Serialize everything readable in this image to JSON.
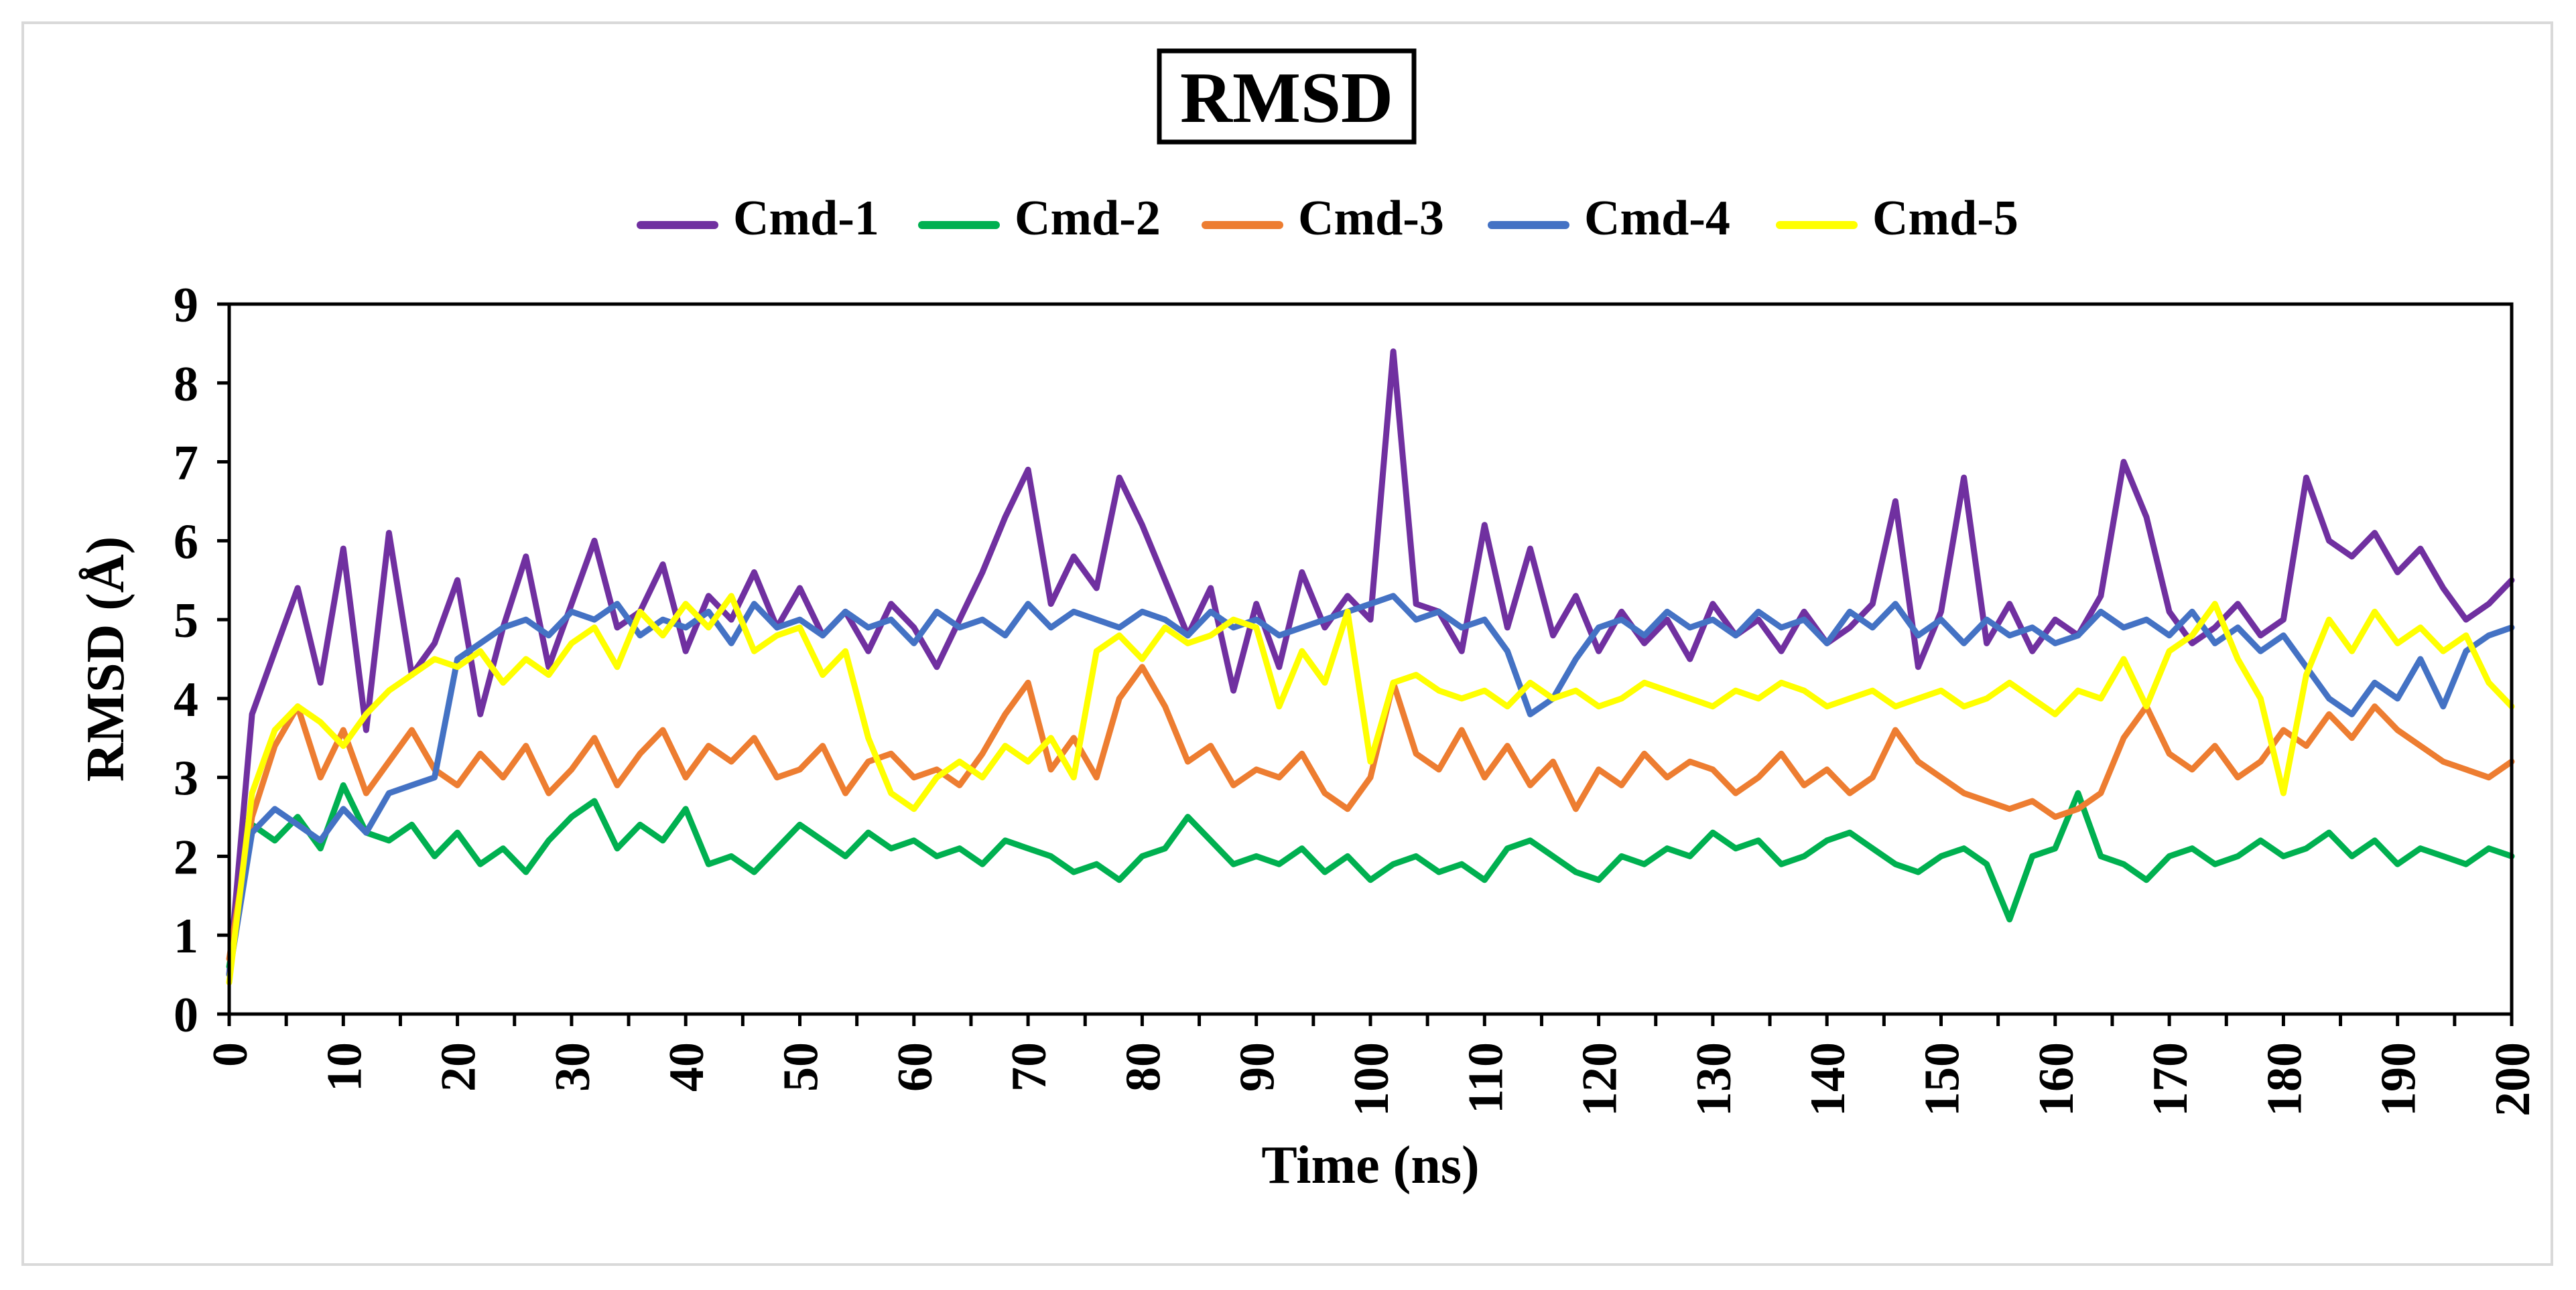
{
  "chart_data": {
    "type": "line",
    "title": "RMSD",
    "xlabel": "Time (ns)",
    "ylabel": "RMSD (Å)",
    "xlim": [
      0,
      200
    ],
    "ylim": [
      0,
      9
    ],
    "grid": false,
    "legend_position": "top-center",
    "x_ticks": [
      0,
      10,
      20,
      30,
      40,
      50,
      60,
      70,
      80,
      90,
      100,
      110,
      120,
      130,
      140,
      150,
      160,
      170,
      180,
      190,
      200
    ],
    "y_ticks": [
      0,
      1,
      2,
      3,
      4,
      5,
      6,
      7,
      8,
      9
    ],
    "x": [
      0,
      2,
      4,
      6,
      8,
      10,
      12,
      14,
      16,
      18,
      20,
      22,
      24,
      26,
      28,
      30,
      32,
      34,
      36,
      38,
      40,
      42,
      44,
      46,
      48,
      50,
      52,
      54,
      56,
      58,
      60,
      62,
      64,
      66,
      68,
      70,
      72,
      74,
      76,
      78,
      80,
      82,
      84,
      86,
      88,
      90,
      92,
      94,
      96,
      98,
      100,
      102,
      104,
      106,
      108,
      110,
      112,
      114,
      116,
      118,
      120,
      122,
      124,
      126,
      128,
      130,
      132,
      134,
      136,
      138,
      140,
      142,
      144,
      146,
      148,
      150,
      152,
      154,
      156,
      158,
      160,
      162,
      164,
      166,
      168,
      170,
      172,
      174,
      176,
      178,
      180,
      182,
      184,
      186,
      188,
      190,
      192,
      194,
      196,
      198,
      200
    ],
    "series": [
      {
        "name": "Cmd-1",
        "color": "#7030a0",
        "values": [
          0.5,
          3.8,
          4.6,
          5.4,
          4.2,
          5.9,
          3.6,
          6.1,
          4.3,
          4.7,
          5.5,
          3.8,
          4.9,
          5.8,
          4.4,
          5.2,
          6.0,
          4.9,
          5.1,
          5.7,
          4.6,
          5.3,
          5.0,
          5.6,
          4.9,
          5.4,
          4.8,
          5.1,
          4.6,
          5.2,
          4.9,
          4.4,
          5.0,
          5.6,
          6.3,
          6.9,
          5.2,
          5.8,
          5.4,
          6.8,
          6.2,
          5.5,
          4.8,
          5.4,
          4.1,
          5.2,
          4.4,
          5.6,
          4.9,
          5.3,
          5.0,
          8.4,
          5.2,
          5.1,
          4.6,
          6.2,
          4.9,
          5.9,
          4.8,
          5.3,
          4.6,
          5.1,
          4.7,
          5.0,
          4.5,
          5.2,
          4.8,
          5.0,
          4.6,
          5.1,
          4.7,
          4.9,
          5.2,
          6.5,
          4.4,
          5.1,
          6.8,
          4.7,
          5.2,
          4.6,
          5.0,
          4.8,
          5.3,
          7.0,
          6.3,
          5.1,
          4.7,
          4.9,
          5.2,
          4.8,
          5.0,
          6.8,
          6.0,
          5.8,
          6.1,
          5.6,
          5.9,
          5.4,
          5.0,
          5.2,
          5.5
        ]
      },
      {
        "name": "Cmd-2",
        "color": "#00b050",
        "values": [
          0.6,
          2.4,
          2.2,
          2.5,
          2.1,
          2.9,
          2.3,
          2.2,
          2.4,
          2.0,
          2.3,
          1.9,
          2.1,
          1.8,
          2.2,
          2.5,
          2.7,
          2.1,
          2.4,
          2.2,
          2.6,
          1.9,
          2.0,
          1.8,
          2.1,
          2.4,
          2.2,
          2.0,
          2.3,
          2.1,
          2.2,
          2.0,
          2.1,
          1.9,
          2.2,
          2.1,
          2.0,
          1.8,
          1.9,
          1.7,
          2.0,
          2.1,
          2.5,
          2.2,
          1.9,
          2.0,
          1.9,
          2.1,
          1.8,
          2.0,
          1.7,
          1.9,
          2.0,
          1.8,
          1.9,
          1.7,
          2.1,
          2.2,
          2.0,
          1.8,
          1.7,
          2.0,
          1.9,
          2.1,
          2.0,
          2.3,
          2.1,
          2.2,
          1.9,
          2.0,
          2.2,
          2.3,
          2.1,
          1.9,
          1.8,
          2.0,
          2.1,
          1.9,
          1.2,
          2.0,
          2.1,
          2.8,
          2.0,
          1.9,
          1.7,
          2.0,
          2.1,
          1.9,
          2.0,
          2.2,
          2.0,
          2.1,
          2.3,
          2.0,
          2.2,
          1.9,
          2.1,
          2.0,
          1.9,
          2.1,
          2.0
        ]
      },
      {
        "name": "Cmd-3",
        "color": "#ed7d31",
        "values": [
          0.7,
          2.5,
          3.4,
          3.9,
          3.0,
          3.6,
          2.8,
          3.2,
          3.6,
          3.1,
          2.9,
          3.3,
          3.0,
          3.4,
          2.8,
          3.1,
          3.5,
          2.9,
          3.3,
          3.6,
          3.0,
          3.4,
          3.2,
          3.5,
          3.0,
          3.1,
          3.4,
          2.8,
          3.2,
          3.3,
          3.0,
          3.1,
          2.9,
          3.3,
          3.8,
          4.2,
          3.1,
          3.5,
          3.0,
          4.0,
          4.4,
          3.9,
          3.2,
          3.4,
          2.9,
          3.1,
          3.0,
          3.3,
          2.8,
          2.6,
          3.0,
          4.2,
          3.3,
          3.1,
          3.6,
          3.0,
          3.4,
          2.9,
          3.2,
          2.6,
          3.1,
          2.9,
          3.3,
          3.0,
          3.2,
          3.1,
          2.8,
          3.0,
          3.3,
          2.9,
          3.1,
          2.8,
          3.0,
          3.6,
          3.2,
          3.0,
          2.8,
          2.7,
          2.6,
          2.7,
          2.5,
          2.6,
          2.8,
          3.5,
          3.9,
          3.3,
          3.1,
          3.4,
          3.0,
          3.2,
          3.6,
          3.4,
          3.8,
          3.5,
          3.9,
          3.6,
          3.4,
          3.2,
          3.1,
          3.0,
          3.2
        ]
      },
      {
        "name": "Cmd-4",
        "color": "#4472c4",
        "values": [
          0.5,
          2.3,
          2.6,
          2.4,
          2.2,
          2.6,
          2.3,
          2.8,
          2.9,
          3.0,
          4.5,
          4.7,
          4.9,
          5.0,
          4.8,
          5.1,
          5.0,
          5.2,
          4.8,
          5.0,
          4.9,
          5.1,
          4.7,
          5.2,
          4.9,
          5.0,
          4.8,
          5.1,
          4.9,
          5.0,
          4.7,
          5.1,
          4.9,
          5.0,
          4.8,
          5.2,
          4.9,
          5.1,
          5.0,
          4.9,
          5.1,
          5.0,
          4.8,
          5.1,
          4.9,
          5.0,
          4.8,
          4.9,
          5.0,
          5.1,
          5.2,
          5.3,
          5.0,
          5.1,
          4.9,
          5.0,
          4.6,
          3.8,
          4.0,
          4.5,
          4.9,
          5.0,
          4.8,
          5.1,
          4.9,
          5.0,
          4.8,
          5.1,
          4.9,
          5.0,
          4.7,
          5.1,
          4.9,
          5.2,
          4.8,
          5.0,
          4.7,
          5.0,
          4.8,
          4.9,
          4.7,
          4.8,
          5.1,
          4.9,
          5.0,
          4.8,
          5.1,
          4.7,
          4.9,
          4.6,
          4.8,
          4.4,
          4.0,
          3.8,
          4.2,
          4.0,
          4.5,
          3.9,
          4.6,
          4.8,
          4.9
        ]
      },
      {
        "name": "Cmd-5",
        "color": "#ffff00",
        "values": [
          0.4,
          2.8,
          3.6,
          3.9,
          3.7,
          3.4,
          3.8,
          4.1,
          4.3,
          4.5,
          4.4,
          4.6,
          4.2,
          4.5,
          4.3,
          4.7,
          4.9,
          4.4,
          5.1,
          4.8,
          5.2,
          4.9,
          5.3,
          4.6,
          4.8,
          4.9,
          4.3,
          4.6,
          3.5,
          2.8,
          2.6,
          3.0,
          3.2,
          3.0,
          3.4,
          3.2,
          3.5,
          3.0,
          4.6,
          4.8,
          4.5,
          4.9,
          4.7,
          4.8,
          5.0,
          4.9,
          3.9,
          4.6,
          4.2,
          5.1,
          3.2,
          4.2,
          4.3,
          4.1,
          4.0,
          4.1,
          3.9,
          4.2,
          4.0,
          4.1,
          3.9,
          4.0,
          4.2,
          4.1,
          4.0,
          3.9,
          4.1,
          4.0,
          4.2,
          4.1,
          3.9,
          4.0,
          4.1,
          3.9,
          4.0,
          4.1,
          3.9,
          4.0,
          4.2,
          4.0,
          3.8,
          4.1,
          4.0,
          4.5,
          3.9,
          4.6,
          4.8,
          5.2,
          4.5,
          4.0,
          2.8,
          4.3,
          5.0,
          4.6,
          5.1,
          4.7,
          4.9,
          4.6,
          4.8,
          4.2,
          3.9
        ]
      }
    ]
  }
}
